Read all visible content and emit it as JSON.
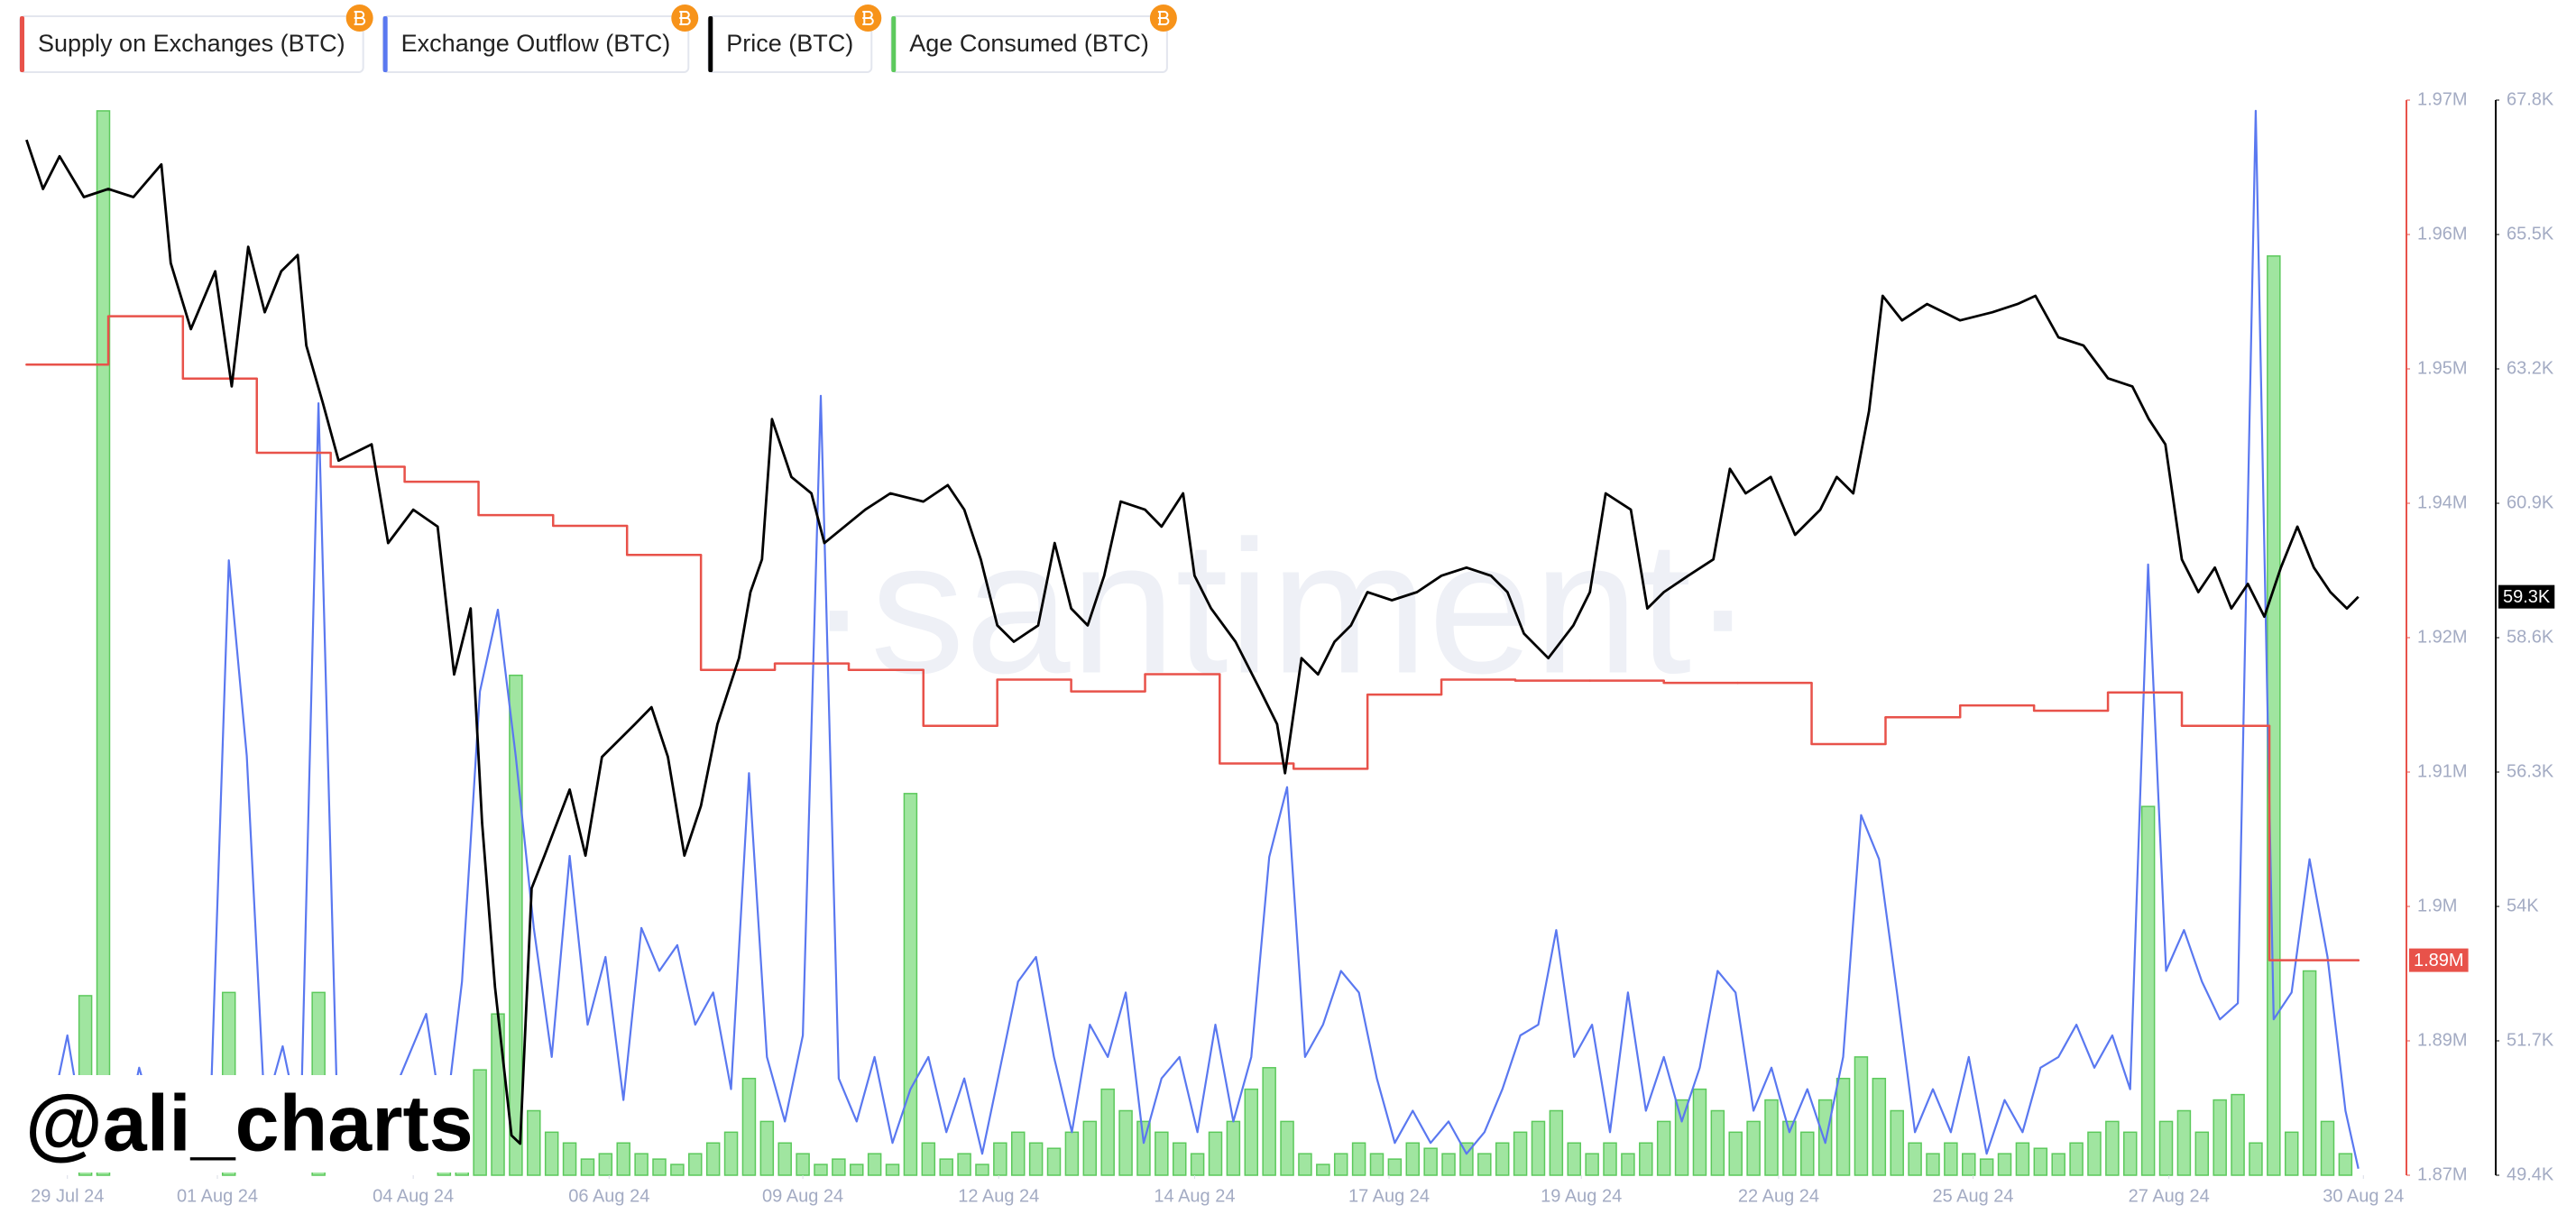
{
  "chart_data": {
    "type": "line",
    "watermark": "·santiment·",
    "annotation": "@ali_charts",
    "xlim": [
      -0.6,
      32.6
    ],
    "xticks": [
      {
        "value": 0,
        "label": "29 Jul 24"
      },
      {
        "value": 2.09,
        "label": "01 Aug 24"
      },
      {
        "value": 4.82,
        "label": "04 Aug 24"
      },
      {
        "value": 7.55,
        "label": "06 Aug 24"
      },
      {
        "value": 10.25,
        "label": "09 Aug 24"
      },
      {
        "value": 12.98,
        "label": "12 Aug 24"
      },
      {
        "value": 15.71,
        "label": "14 Aug 24"
      },
      {
        "value": 18.42,
        "label": "17 Aug 24"
      },
      {
        "value": 21.1,
        "label": "19 Aug 24"
      },
      {
        "value": 23.85,
        "label": "22 Aug 24"
      },
      {
        "value": 26.56,
        "label": "25 Aug 24"
      },
      {
        "value": 29.29,
        "label": "27 Aug 24"
      },
      {
        "value": 32,
        "label": "30 Aug 24"
      }
    ],
    "ylim": [
      1873000,
      1973000
    ],
    "yticks": [
      {
        "value": 1873000,
        "label": "1.87M"
      },
      {
        "value": 1885500,
        "label": "1.89M"
      },
      {
        "value": 1898000,
        "label": "1.9M"
      },
      {
        "value": 1910500,
        "label": "1.91M"
      },
      {
        "value": 1923000,
        "label": "1.92M"
      },
      {
        "value": 1935500,
        "label": "1.94M"
      },
      {
        "value": 1948000,
        "label": "1.95M"
      },
      {
        "value": 1960500,
        "label": "1.96M"
      },
      {
        "value": 1973000,
        "label": "1.97M"
      }
    ],
    "y2lim": [
      49400,
      67800
    ],
    "y2ticks": [
      {
        "value": 49400,
        "label": "49.4K"
      },
      {
        "value": 51700,
        "label": "51.7K"
      },
      {
        "value": 54000,
        "label": "54K"
      },
      {
        "value": 56300,
        "label": "56.3K"
      },
      {
        "value": 58600,
        "label": "58.6K"
      },
      {
        "value": 60900,
        "label": "60.9K"
      },
      {
        "value": 63200,
        "label": "63.2K"
      },
      {
        "value": 65500,
        "label": "65.5K"
      },
      {
        "value": 67800,
        "label": "67.8K"
      }
    ],
    "series": [
      {
        "name": "Supply on Exchanges (BTC)",
        "color": "#e8524a",
        "drawstyle": "steps-post",
        "x": [
          -0.57,
          0.57,
          1.61,
          2.64,
          3.67,
          4.7,
          5.73,
          6.77,
          7.8,
          8.83,
          9.86,
          10.89,
          11.93,
          12.96,
          13.99,
          15.02,
          16.06,
          17.09,
          18.12,
          19.15,
          20.18,
          21.22,
          22.25,
          23.28,
          24.31,
          25.34,
          26.38,
          27.41,
          28.44,
          29.47,
          30.69,
          31.93
        ],
        "values": [
          1948400,
          1952900,
          1947100,
          1940200,
          1938900,
          1937500,
          1934400,
          1933400,
          1930700,
          1920000,
          1920600,
          1920000,
          1914800,
          1919100,
          1918000,
          1919600,
          1911300,
          1910800,
          1917700,
          1919100,
          1919000,
          1919000,
          1918800,
          1918800,
          1913100,
          1915600,
          1916700,
          1916200,
          1917900,
          1914800,
          1893000,
          1893000
        ],
        "value_labels": [
          null,
          null,
          null,
          null,
          null,
          null,
          null,
          null,
          null,
          null,
          null,
          null,
          null,
          null,
          null,
          null,
          null,
          null,
          null,
          null,
          null,
          null,
          null,
          null,
          null,
          null,
          null,
          null,
          null,
          null,
          null,
          "1.89M"
        ]
      },
      {
        "name": "Exchange Outflow (BTC)",
        "color": "#5a78f0",
        "ylim": [
          0,
          10000
        ],
        "x": [
          -0.5,
          -0.25,
          0,
          0.25,
          0.5,
          0.75,
          1,
          1.25,
          1.5,
          1.75,
          2,
          2.25,
          2.5,
          2.75,
          3,
          3.25,
          3.5,
          3.75,
          4,
          4.25,
          4.5,
          4.75,
          5,
          5.25,
          5.5,
          5.75,
          6,
          6.25,
          6.5,
          6.75,
          7,
          7.25,
          7.5,
          7.75,
          8,
          8.25,
          8.5,
          8.75,
          9,
          9.25,
          9.5,
          9.75,
          10,
          10.25,
          10.5,
          10.75,
          11,
          11.25,
          11.5,
          11.75,
          12,
          12.25,
          12.5,
          12.75,
          13,
          13.25,
          13.5,
          13.75,
          14,
          14.25,
          14.5,
          14.75,
          15,
          15.25,
          15.5,
          15.75,
          16,
          16.25,
          16.5,
          16.75,
          17,
          17.25,
          17.5,
          17.75,
          18,
          18.25,
          18.5,
          18.75,
          19,
          19.25,
          19.5,
          19.75,
          20,
          20.25,
          20.5,
          20.75,
          21,
          21.25,
          21.5,
          21.75,
          22,
          22.25,
          22.5,
          22.75,
          23,
          23.25,
          23.5,
          23.75,
          24,
          24.25,
          24.5,
          24.75,
          25,
          25.25,
          25.5,
          25.75,
          26,
          26.25,
          26.5,
          26.75,
          27,
          27.25,
          27.5,
          27.75,
          28,
          28.25,
          28.5,
          28.75,
          29,
          29.25,
          29.5,
          29.75,
          30,
          30.25,
          30.5,
          30.75,
          31,
          31.25,
          31.5,
          31.75,
          31.93
        ],
        "values": [
          900,
          500,
          1300,
          300,
          800,
          200,
          1000,
          400,
          900,
          300,
          700,
          5720,
          3900,
          600,
          1200,
          400,
          7180,
          900,
          500,
          300,
          700,
          1100,
          1500,
          400,
          1800,
          4500,
          5260,
          3890,
          2300,
          1100,
          2970,
          1400,
          2030,
          700,
          2300,
          1900,
          2140,
          1400,
          1700,
          800,
          3740,
          1100,
          500,
          1300,
          7250,
          900,
          500,
          1100,
          300,
          800,
          1100,
          400,
          900,
          200,
          1000,
          1800,
          2030,
          1100,
          400,
          1400,
          1100,
          1700,
          300,
          900,
          1100,
          400,
          1400,
          500,
          1100,
          2960,
          3610,
          1100,
          1400,
          1900,
          1700,
          900,
          300,
          600,
          300,
          500,
          200,
          400,
          800,
          1300,
          1400,
          2280,
          1100,
          1400,
          400,
          1700,
          600,
          1100,
          500,
          1000,
          1900,
          1700,
          600,
          1000,
          400,
          800,
          300,
          1100,
          3350,
          2940,
          1700,
          400,
          800,
          400,
          1100,
          200,
          700,
          400,
          1000,
          1100,
          1400,
          1000,
          1300,
          800,
          5680,
          1900,
          2280,
          1800,
          1450,
          1600,
          9900,
          1450,
          1700,
          2940,
          2030,
          600,
          60
        ]
      },
      {
        "name": "Price (BTC)",
        "color": "#000000",
        "axis": "y2",
        "x": [
          -0.57,
          -0.34,
          -0.11,
          0.23,
          0.57,
          0.92,
          1.31,
          1.44,
          1.72,
          2.06,
          2.29,
          2.52,
          2.75,
          2.98,
          3.21,
          3.33,
          3.56,
          3.78,
          4.24,
          4.47,
          4.82,
          5.16,
          5.39,
          5.62,
          5.78,
          5.96,
          6.19,
          6.31,
          6.47,
          6.65,
          7.0,
          7.22,
          7.45,
          7.91,
          8.14,
          8.37,
          8.6,
          8.83,
          9.06,
          9.36,
          9.52,
          9.68,
          9.82,
          10.09,
          10.37,
          10.55,
          10.83,
          11.12,
          11.47,
          11.93,
          12.27,
          12.5,
          12.73,
          12.96,
          13.19,
          13.53,
          13.76,
          13.99,
          14.22,
          14.45,
          14.68,
          15.02,
          15.25,
          15.55,
          15.71,
          15.94,
          16.28,
          16.63,
          16.86,
          16.97,
          17.2,
          17.43,
          17.66,
          17.89,
          18.12,
          18.46,
          18.81,
          19.15,
          19.5,
          19.84,
          20.07,
          20.3,
          20.64,
          20.99,
          21.22,
          21.44,
          21.79,
          22.02,
          22.25,
          22.59,
          22.94,
          23.17,
          23.39,
          23.74,
          24.08,
          24.43,
          24.66,
          24.89,
          25.11,
          25.3,
          25.57,
          25.92,
          26.38,
          26.83,
          27.18,
          27.43,
          27.75,
          28.1,
          28.44,
          28.78,
          29.01,
          29.24,
          29.47,
          29.7,
          29.93,
          30.16,
          30.39,
          30.62,
          30.85,
          31.08,
          31.31,
          31.54,
          31.77,
          31.93
        ],
        "values": [
          67120,
          66280,
          66840,
          66140,
          66280,
          66140,
          66700,
          65010,
          63880,
          64870,
          62900,
          65290,
          64170,
          64870,
          65150,
          63600,
          62620,
          61630,
          61910,
          60220,
          60790,
          60500,
          57970,
          59100,
          55430,
          52620,
          50080,
          49940,
          54310,
          54870,
          56000,
          54870,
          56560,
          57120,
          57410,
          56560,
          54870,
          55720,
          57120,
          58250,
          59380,
          59940,
          62340,
          61350,
          61070,
          60220,
          60500,
          60790,
          61070,
          60930,
          61210,
          60790,
          59940,
          58810,
          58530,
          58810,
          60220,
          59100,
          58810,
          59660,
          60930,
          60790,
          60500,
          61070,
          59660,
          59100,
          58530,
          57690,
          57120,
          56280,
          58250,
          57970,
          58530,
          58810,
          59380,
          59240,
          59380,
          59660,
          59800,
          59660,
          59380,
          58670,
          58250,
          58810,
          59380,
          61070,
          60790,
          59100,
          59380,
          59660,
          59940,
          61490,
          61070,
          61350,
          60360,
          60790,
          61350,
          61070,
          62480,
          64450,
          64030,
          64310,
          64030,
          64170,
          64310,
          64450,
          63740,
          63600,
          63040,
          62900,
          62340,
          61910,
          59940,
          59380,
          59800,
          59100,
          59520,
          58960,
          59800,
          60500,
          59800,
          59380,
          59100,
          59300
        ],
        "value_labels": [
          null,
          null,
          null,
          null,
          null,
          null,
          null,
          null,
          null,
          null,
          null,
          null,
          null,
          null,
          null,
          null,
          null,
          null,
          null,
          null,
          null,
          null,
          null,
          null,
          null,
          null,
          null,
          null,
          null,
          null,
          null,
          null,
          null,
          null,
          null,
          null,
          null,
          null,
          null,
          null,
          null,
          null,
          null,
          null,
          null,
          null,
          null,
          null,
          null,
          null,
          null,
          null,
          null,
          null,
          null,
          null,
          null,
          null,
          null,
          null,
          null,
          null,
          null,
          null,
          null,
          null,
          null,
          null,
          null,
          null,
          null,
          null,
          null,
          null,
          null,
          null,
          null,
          null,
          null,
          null,
          null,
          null,
          null,
          null,
          null,
          null,
          null,
          null,
          null,
          null,
          null,
          null,
          null,
          null,
          null,
          null,
          null,
          null,
          null,
          null,
          null,
          null,
          null,
          null,
          null,
          null,
          null,
          null,
          null,
          null,
          null,
          null,
          null,
          null,
          null,
          null,
          null,
          null,
          null,
          null,
          null,
          null,
          null,
          "59.3K"
        ]
      },
      {
        "name": "Age Consumed (BTC)",
        "color": "#5cc95c",
        "type": "bar",
        "ylim": [
          0,
          10000
        ],
        "x": [
          -0.5,
          -0.25,
          0,
          0.25,
          0.5,
          0.75,
          1,
          1.25,
          1.5,
          1.75,
          2,
          2.25,
          2.5,
          2.75,
          3,
          3.25,
          3.5,
          3.75,
          4,
          4.25,
          4.5,
          4.75,
          5,
          5.25,
          5.5,
          5.75,
          6,
          6.25,
          6.5,
          6.75,
          7,
          7.25,
          7.5,
          7.75,
          8,
          8.25,
          8.5,
          8.75,
          9,
          9.25,
          9.5,
          9.75,
          10,
          10.25,
          10.5,
          10.75,
          11,
          11.25,
          11.5,
          11.75,
          12,
          12.25,
          12.5,
          12.75,
          13,
          13.25,
          13.5,
          13.75,
          14,
          14.25,
          14.5,
          14.75,
          15,
          15.25,
          15.5,
          15.75,
          16,
          16.25,
          16.5,
          16.75,
          17,
          17.25,
          17.5,
          17.75,
          18,
          18.25,
          18.5,
          18.75,
          19,
          19.25,
          19.5,
          19.75,
          20,
          20.25,
          20.5,
          20.75,
          21,
          21.25,
          21.5,
          21.75,
          22,
          22.25,
          22.5,
          22.75,
          23,
          23.25,
          23.5,
          23.75,
          24,
          24.25,
          24.5,
          24.75,
          25,
          25.25,
          25.5,
          25.75,
          26,
          26.25,
          26.5,
          26.75,
          27,
          27.25,
          27.5,
          27.75,
          28,
          28.25,
          28.5,
          28.75,
          29,
          29.25,
          29.5,
          29.75,
          30,
          30.25,
          30.5,
          30.75,
          31,
          31.25,
          31.5,
          31.75
        ],
        "values": [
          0,
          0,
          0,
          1670,
          9900,
          0,
          0,
          0,
          0,
          0,
          0,
          1700,
          0,
          0,
          0,
          0,
          1700,
          0,
          0,
          0,
          0,
          0,
          0,
          100,
          600,
          980,
          1500,
          4650,
          600,
          400,
          300,
          150,
          200,
          300,
          200,
          150,
          100,
          200,
          300,
          400,
          900,
          500,
          300,
          200,
          100,
          150,
          100,
          200,
          100,
          3550,
          300,
          150,
          200,
          100,
          300,
          400,
          300,
          250,
          400,
          500,
          800,
          600,
          500,
          400,
          300,
          200,
          400,
          500,
          800,
          1000,
          500,
          200,
          100,
          200,
          300,
          200,
          150,
          300,
          250,
          200,
          300,
          200,
          300,
          400,
          500,
          600,
          300,
          200,
          300,
          200,
          300,
          500,
          700,
          800,
          600,
          400,
          500,
          700,
          500,
          400,
          700,
          900,
          1100,
          900,
          600,
          300,
          200,
          300,
          200,
          150,
          200,
          300,
          250,
          200,
          300,
          400,
          500,
          400,
          3430,
          500,
          600,
          400,
          700,
          750,
          300,
          8550,
          400,
          1900,
          500,
          200
        ]
      }
    ]
  }
}
